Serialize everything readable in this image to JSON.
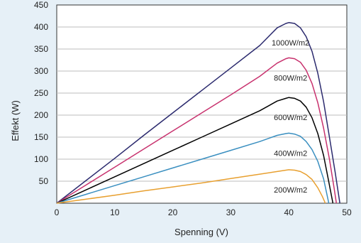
{
  "chart_data": {
    "type": "line",
    "xlabel": "Spenning (V)",
    "ylabel": "Effekt (W)",
    "xlim": [
      0,
      50
    ],
    "ylim": [
      0,
      450
    ],
    "xticks": [
      0,
      10,
      20,
      30,
      40,
      50
    ],
    "yticks": [
      50,
      100,
      150,
      200,
      250,
      300,
      350,
      400,
      450
    ],
    "grid": "horizontal",
    "series": [
      {
        "name": "1000W/m2",
        "color": "#2b2a6e",
        "points": [
          [
            0,
            0
          ],
          [
            5,
            51
          ],
          [
            10,
            102
          ],
          [
            15,
            154
          ],
          [
            20,
            205
          ],
          [
            25,
            256
          ],
          [
            30,
            307
          ],
          [
            35,
            358
          ],
          [
            38,
            398
          ],
          [
            39.5,
            408
          ],
          [
            40,
            410
          ],
          [
            41,
            408
          ],
          [
            42,
            398
          ],
          [
            43,
            378
          ],
          [
            44,
            345
          ],
          [
            45,
            295
          ],
          [
            46,
            230
          ],
          [
            47,
            150
          ],
          [
            48,
            70
          ],
          [
            48.8,
            0
          ]
        ]
      },
      {
        "name": "800W/m2",
        "color": "#c8326e",
        "points": [
          [
            0,
            0
          ],
          [
            5,
            41
          ],
          [
            10,
            82
          ],
          [
            15,
            123
          ],
          [
            20,
            164
          ],
          [
            25,
            205
          ],
          [
            30,
            246
          ],
          [
            35,
            288
          ],
          [
            38,
            318
          ],
          [
            39.5,
            328
          ],
          [
            40,
            330
          ],
          [
            41,
            328
          ],
          [
            42,
            320
          ],
          [
            43,
            302
          ],
          [
            44,
            272
          ],
          [
            45,
            228
          ],
          [
            46,
            170
          ],
          [
            47,
            100
          ],
          [
            47.8,
            35
          ],
          [
            48.2,
            0
          ]
        ]
      },
      {
        "name": "600W/m2",
        "color": "#000000",
        "points": [
          [
            0,
            0
          ],
          [
            5,
            30
          ],
          [
            10,
            60
          ],
          [
            15,
            90
          ],
          [
            20,
            120
          ],
          [
            25,
            150
          ],
          [
            30,
            180
          ],
          [
            35,
            210
          ],
          [
            38,
            232
          ],
          [
            39.5,
            238
          ],
          [
            40,
            240
          ],
          [
            41,
            238
          ],
          [
            42,
            232
          ],
          [
            43,
            218
          ],
          [
            44,
            194
          ],
          [
            45,
            158
          ],
          [
            46,
            108
          ],
          [
            46.8,
            55
          ],
          [
            47.6,
            0
          ]
        ]
      },
      {
        "name": "400W/m2",
        "color": "#3a8fc0",
        "points": [
          [
            0,
            0
          ],
          [
            5,
            20
          ],
          [
            10,
            40
          ],
          [
            15,
            60
          ],
          [
            20,
            80
          ],
          [
            25,
            100
          ],
          [
            30,
            120
          ],
          [
            35,
            140
          ],
          [
            38,
            154
          ],
          [
            39.5,
            158
          ],
          [
            40,
            159
          ],
          [
            41,
            157
          ],
          [
            42,
            152
          ],
          [
            43,
            140
          ],
          [
            44,
            122
          ],
          [
            45,
            95
          ],
          [
            46,
            55
          ],
          [
            46.9,
            0
          ]
        ]
      },
      {
        "name": "200W/m2",
        "color": "#e8a030",
        "points": [
          [
            0,
            0
          ],
          [
            5,
            9
          ],
          [
            10,
            18
          ],
          [
            15,
            28
          ],
          [
            20,
            37
          ],
          [
            25,
            46
          ],
          [
            30,
            56
          ],
          [
            35,
            66
          ],
          [
            38,
            72
          ],
          [
            39.5,
            75
          ],
          [
            40,
            76
          ],
          [
            41,
            75
          ],
          [
            42,
            72
          ],
          [
            43,
            65
          ],
          [
            44,
            54
          ],
          [
            45,
            35
          ],
          [
            45.8,
            15
          ],
          [
            46.3,
            0
          ]
        ]
      }
    ]
  }
}
